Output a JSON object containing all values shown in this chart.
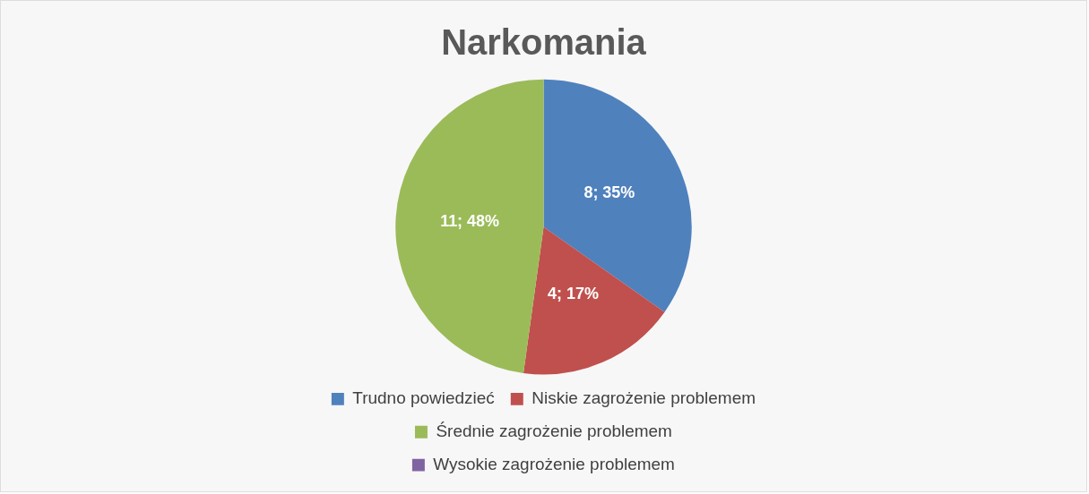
{
  "chart_data": {
    "type": "pie",
    "title": "Narkomania",
    "categories": [
      "Trudno powiedzieć",
      "Niskie zagrożenie problemem",
      "Średnie zagrożenie problemem",
      "Wysokie zagrożenie problemem"
    ],
    "values": [
      8,
      4,
      11,
      0
    ],
    "colors": [
      "#4f81bd",
      "#c0504d",
      "#9bbb59",
      "#8064a2"
    ],
    "value_labels": [
      "8; 35%",
      "4; 17%",
      "11; 48%",
      null
    ],
    "legend": "bottom"
  }
}
